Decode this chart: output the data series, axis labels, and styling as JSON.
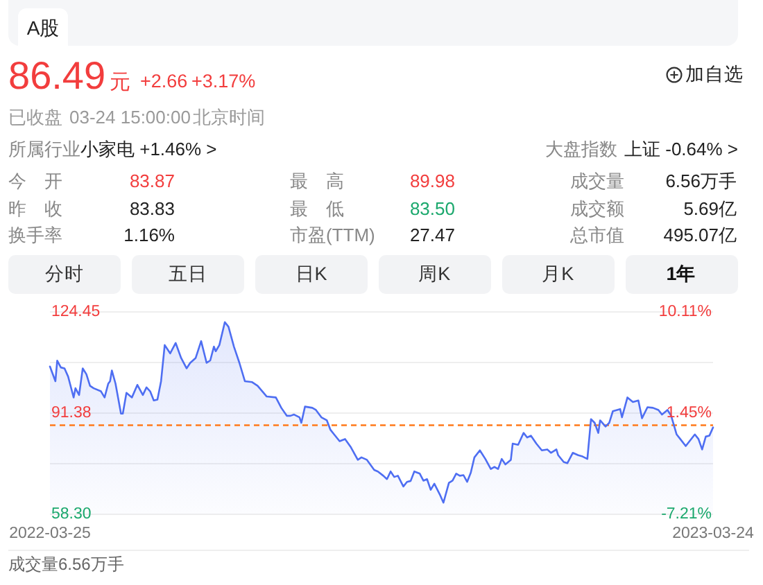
{
  "chart_data": [
    {
      "type": "other",
      "annotations": [
        "A股",
        "86.49",
        "元",
        "+2.66",
        "+3.17%",
        "加自选",
        "已收盘",
        "03-24 15:00:00",
        "北京时间",
        "所属行业",
        "小家电 +1.46% >",
        "大盘指数",
        "上证 -0.64% >",
        "今 开",
        "83.87",
        "最 高",
        "89.98",
        "成交量",
        "6.56万手",
        "昨 收",
        "83.83",
        "最 低",
        "83.50",
        "成交额",
        "5.69亿",
        "换手率",
        "1.16%",
        "市盈(TTM)",
        "27.47",
        "总市值",
        "495.07亿",
        "分时",
        "五日",
        "日K",
        "周K",
        "月K",
        "1年"
      ]
    },
    {
      "type": "area",
      "color": "#4e6ef2",
      "x": [
        "2022-03-25",
        "2022-03-28",
        "2022-03-29",
        "2022-03-31",
        "2022-04-02",
        "2022-04-04",
        "2022-04-05",
        "2022-04-07",
        "2022-04-08",
        "2022-04-10",
        "2022-04-12",
        "2022-04-14",
        "2022-04-16",
        "2022-04-18",
        "2022-04-22",
        "2022-04-24",
        "2022-04-26",
        "2022-04-27",
        "2022-04-28",
        "2022-04-30",
        "2022-05-03",
        "2022-05-04",
        "2022-05-06",
        "2022-05-09",
        "2022-05-12",
        "2022-05-15",
        "2022-05-17",
        "2022-05-19",
        "2022-05-21",
        "2022-05-23",
        "2022-05-25",
        "2022-05-27",
        "2022-05-30",
        "2022-06-02",
        "2022-06-05",
        "2022-06-08",
        "2022-06-10",
        "2022-06-13",
        "2022-06-16",
        "2022-06-19",
        "2022-06-21",
        "2022-06-23",
        "2022-06-24",
        "2022-06-26",
        "2022-06-29",
        "2022-07-01",
        "2022-07-04",
        "2022-07-07",
        "2022-07-10",
        "2022-07-14",
        "2022-07-17",
        "2022-07-22",
        "2022-07-27",
        "2022-07-30",
        "2022-08-02",
        "2022-08-04",
        "2022-08-06",
        "2022-08-09",
        "2022-08-10",
        "2022-08-12",
        "2022-08-16",
        "2022-08-18",
        "2022-08-21",
        "2022-08-24",
        "2022-08-26",
        "2022-08-28",
        "2022-08-31",
        "2022-09-03",
        "2022-09-06",
        "2022-09-10",
        "2022-09-12",
        "2022-09-15",
        "2022-09-19",
        "2022-09-21",
        "2022-09-24",
        "2022-09-26",
        "2022-09-28",
        "2022-09-30",
        "2022-10-02",
        "2022-10-05",
        "2022-10-07",
        "2022-10-09",
        "2022-10-11",
        "2022-10-14",
        "2022-10-16",
        "2022-10-18",
        "2022-10-20",
        "2022-10-22",
        "2022-10-25",
        "2022-10-27",
        "2022-10-30",
        "2022-11-01",
        "2022-11-03",
        "2022-11-05",
        "2022-11-07",
        "2022-11-09",
        "2022-11-11",
        "2022-11-13",
        "2022-11-16",
        "2022-11-19",
        "2022-11-22",
        "2022-11-24",
        "2022-11-26",
        "2022-11-28",
        "2022-11-30",
        "2022-12-03",
        "2022-12-04",
        "2022-12-07",
        "2022-12-10",
        "2022-12-12",
        "2022-12-14",
        "2022-12-17",
        "2022-12-20",
        "2022-12-23",
        "2022-12-25",
        "2022-12-28",
        "2022-12-29",
        "2023-01-01",
        "2023-01-03",
        "2023-01-06",
        "2023-01-09",
        "2023-01-11",
        "2023-01-14",
        "2023-01-16",
        "2023-01-18",
        "2023-01-20",
        "2023-01-21",
        "2023-01-24",
        "2023-01-26",
        "2023-01-28",
        "2023-02-01",
        "2023-02-02",
        "2023-02-05",
        "2023-02-08",
        "2023-02-11",
        "2023-02-13",
        "2023-02-16",
        "2023-02-19",
        "2023-02-22",
        "2023-02-24",
        "2023-02-27",
        "2023-03-01",
        "2023-03-04",
        "2023-03-06",
        "2023-03-09",
        "2023-03-14",
        "2023-03-16",
        "2023-03-18",
        "2023-03-20",
        "2023-03-22",
        "2023-03-24"
      ],
      "values": [
        106.6,
        101.8,
        108.5,
        106.3,
        106.0,
        103.3,
        101.0,
        96.5,
        99.5,
        97.3,
        106.0,
        104.1,
        100.3,
        99.5,
        98.5,
        96.5,
        101.0,
        101.8,
        105.3,
        101.0,
        91.2,
        91.2,
        98.0,
        96.5,
        100.6,
        97.3,
        99.8,
        98.5,
        95.5,
        95.8,
        101.8,
        113.6,
        110.9,
        114.3,
        109.4,
        106.0,
        107.8,
        109.4,
        114.9,
        107.8,
        108.6,
        113.1,
        111.6,
        113.6,
        121.1,
        119.6,
        113.1,
        107.8,
        101.8,
        101.5,
        100.3,
        96.8,
        96.5,
        93.1,
        90.5,
        90.5,
        90.9,
        90.0,
        88.2,
        93.5,
        93.1,
        92.4,
        90.0,
        89.0,
        85.9,
        84.4,
        82.2,
        82.9,
        80.4,
        76.1,
        76.9,
        76.1,
        72.8,
        72.3,
        70.9,
        69.8,
        72.3,
        70.5,
        70.9,
        67.4,
        68.9,
        69.2,
        72.3,
        71.6,
        69.3,
        69.8,
        66.3,
        68.3,
        64.8,
        62.1,
        68.6,
        69.3,
        71.6,
        70.9,
        71.1,
        68.9,
        71.9,
        76.9,
        79.2,
        76.4,
        73.1,
        73.8,
        73.1,
        76.4,
        74.6,
        76.1,
        81.4,
        81.0,
        84.9,
        83.4,
        84.0,
        81.4,
        79.2,
        79.5,
        78.4,
        79.5,
        77.6,
        75.4,
        75.0,
        78.4,
        77.6,
        77.3,
        76.4,
        89.4,
        88.2,
        84.9,
        89.0,
        87.0,
        88.2,
        92.0,
        92.7,
        90.0,
        96.5,
        95.0,
        95.5,
        89.7,
        93.3,
        93.1,
        92.4,
        90.9,
        92.4,
        90.5,
        84.4,
        82.9,
        80.6,
        84.4,
        82.9,
        79.5,
        83.7,
        84.0,
        86.7
      ],
      "xlim": [
        "2022-03-25",
        "2023-03-24"
      ],
      "xticks": [
        "2022-03-25",
        "2023-03-24"
      ],
      "ylim": [
        58.3,
        124.45
      ],
      "yticks": [
        124.45,
        {
          "value": 107.91,
          "label": null
        },
        91.38,
        {
          "value": 74.84,
          "label": null
        },
        {
          "value": 58.3,
          "label": "58.30"
        }
      ],
      "y2lim": [
        -7.21,
        10.11
      ],
      "y2ticks": [
        {
          "value": 10.11,
          "label": "10.11%"
        },
        {
          "value": 1.45,
          "label": "1.45%"
        },
        {
          "value": -7.21,
          "label": "-7.21%"
        }
      ],
      "grid": "y",
      "ref_lines": [
        {
          "axis": "y",
          "value": 87.4,
          "color": "#ff7a1a",
          "line_style": "dashed"
        }
      ],
      "annotations": [
        "成交量6.56万手"
      ]
    }
  ]
}
